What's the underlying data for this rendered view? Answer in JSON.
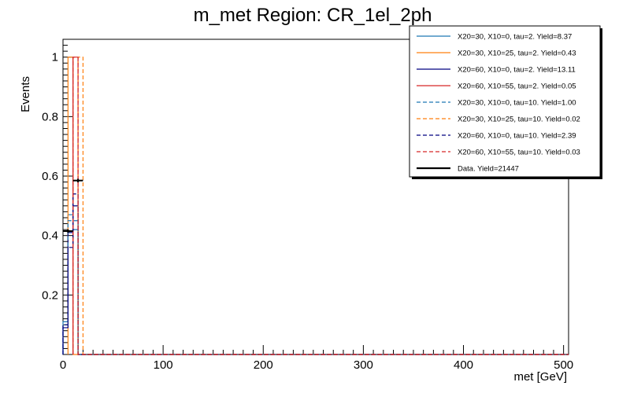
{
  "chart_data": {
    "type": "line",
    "title": "m_met Region: CR_1el_2ph",
    "xlabel": "met [GeV]",
    "ylabel": "Events",
    "xlim": [
      0,
      505
    ],
    "ylim": [
      0,
      1.06
    ],
    "xticks": [
      0,
      100,
      200,
      300,
      400,
      500
    ],
    "yticks": [
      0.2,
      0.4,
      0.6,
      0.8,
      1
    ],
    "xtick_labels": [
      "0",
      "100",
      "200",
      "300",
      "400",
      "500"
    ],
    "ytick_labels": [
      "0.2",
      "0.4",
      "0.6",
      "0.8",
      "1"
    ],
    "legend_position": "top-right",
    "series": [
      {
        "name": "X20=30, X10=0, tau=2. Yield=8.37",
        "color": "#1f77b4",
        "style": "solid",
        "bins": [
          [
            0,
            5,
            0.11
          ],
          [
            5,
            10,
            0.47
          ],
          [
            10,
            15,
            0.42
          ]
        ]
      },
      {
        "name": "X20=30, X10=25, tau=2. Yield=0.43",
        "color": "#ff7f0e",
        "style": "solid",
        "bins": [
          [
            5,
            10,
            1.0
          ]
        ]
      },
      {
        "name": "X20=60, X10=0, tau=2. Yield=13.11",
        "color": "#000080",
        "style": "solid",
        "bins": [
          [
            0,
            5,
            0.09
          ],
          [
            5,
            10,
            0.41
          ],
          [
            10,
            15,
            0.5
          ]
        ]
      },
      {
        "name": "X20=60, X10=55, tau=2. Yield=0.05",
        "color": "#d62728",
        "style": "solid",
        "bins": [
          [
            10,
            15,
            1.0
          ]
        ]
      },
      {
        "name": "X20=30, X10=0, tau=10. Yield=1.00",
        "color": "#1f77b4",
        "style": "dashed",
        "bins": [
          [
            0,
            5,
            0.1
          ],
          [
            5,
            10,
            0.45
          ],
          [
            10,
            15,
            0.45
          ]
        ]
      },
      {
        "name": "X20=30, X10=25, tau=10. Yield=0.02",
        "color": "#ff7f0e",
        "style": "dashed",
        "bins": [
          [
            15,
            20,
            1.0
          ]
        ]
      },
      {
        "name": "X20=60, X10=0, tau=10. Yield=2.39",
        "color": "#000080",
        "style": "dashed",
        "bins": [
          [
            0,
            5,
            0.1
          ],
          [
            5,
            10,
            0.36
          ],
          [
            10,
            15,
            0.54
          ]
        ]
      },
      {
        "name": "X20=60, X10=55, tau=10. Yield=0.03",
        "color": "#d62728",
        "style": "dashed",
        "bins": [
          [
            10,
            15,
            1.0
          ]
        ]
      }
    ],
    "data": {
      "name": "Data. Yield=21447",
      "color": "#000000",
      "points": [
        {
          "x": 5,
          "y": 0.415,
          "xerr": 5,
          "yerr": 0.006
        },
        {
          "x": 15,
          "y": 0.585,
          "xerr": 5,
          "yerr": 0.006
        }
      ]
    }
  }
}
